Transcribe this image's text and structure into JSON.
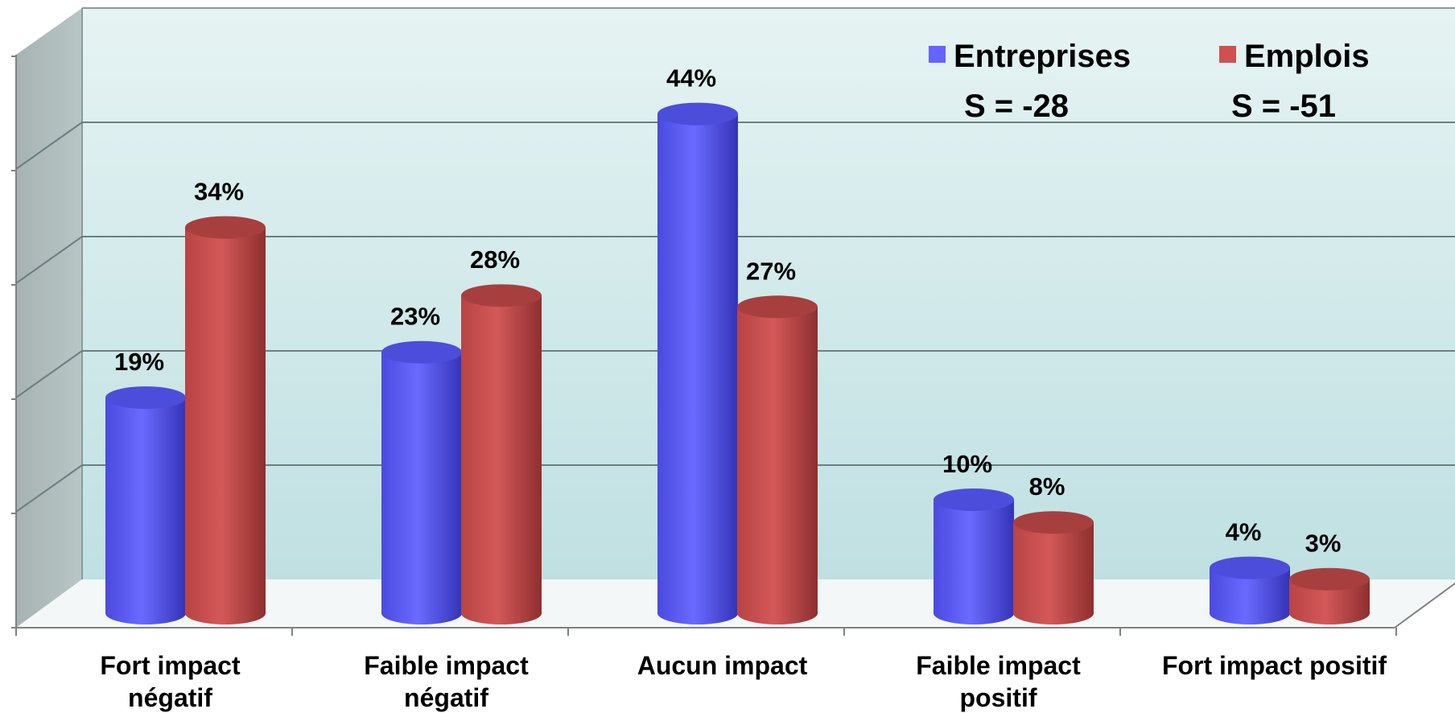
{
  "chart_data": {
    "type": "bar",
    "style": "3d-cylinder",
    "categories": [
      [
        "Fort impact",
        "négatif"
      ],
      [
        "Faible impact",
        "négatif"
      ],
      [
        "Aucun impact"
      ],
      [
        "Faible impact",
        "positif"
      ],
      [
        "Fort impact positif"
      ]
    ],
    "series": [
      {
        "name": "Entreprises",
        "values": [
          19,
          23,
          44,
          10,
          4
        ],
        "labels": [
          "19%",
          "23%",
          "44%",
          "10%",
          "4%"
        ],
        "color": "#6464FF",
        "summary": "S = -28"
      },
      {
        "name": "Emplois",
        "values": [
          34,
          28,
          27,
          8,
          3
        ],
        "labels": [
          "34%",
          "28%",
          "27%",
          "8%",
          "3%"
        ],
        "color": "#D05050",
        "summary": "S = -51"
      }
    ],
    "ylim": [
      0,
      50
    ],
    "grid": true,
    "legend_position": "top-right"
  }
}
